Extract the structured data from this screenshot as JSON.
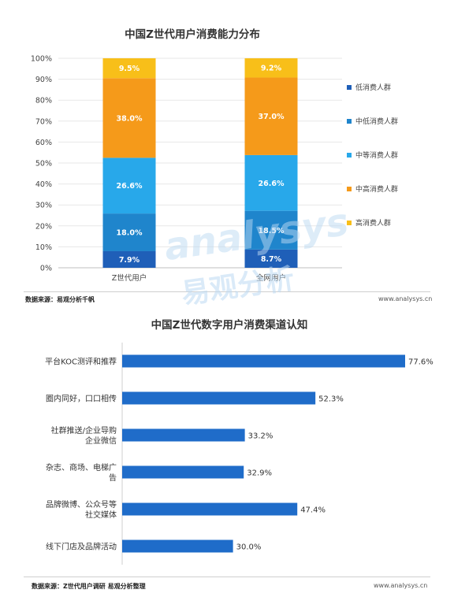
{
  "chart_data": [
    {
      "type": "bar",
      "stacked": true,
      "title": "中国Z世代用户消费能力分布",
      "categories": [
        "Z世代用户",
        "全网用户"
      ],
      "series": [
        {
          "name": "低消费人群",
          "color": "#1f5fb8",
          "values": [
            7.9,
            8.7
          ]
        },
        {
          "name": "中低消费人群",
          "color": "#1f85cc",
          "values": [
            18.0,
            18.5
          ]
        },
        {
          "name": "中等消费人群",
          "color": "#28a8ea",
          "values": [
            26.6,
            26.6
          ]
        },
        {
          "name": "中高消费人群",
          "color": "#f59a1a",
          "values": [
            38.0,
            37.0
          ]
        },
        {
          "name": "高消费人群",
          "color": "#f8bf19",
          "values": [
            9.5,
            9.2
          ]
        }
      ],
      "value_labels": [
        [
          "7.9%",
          "18.0%",
          "26.6%",
          "38.0%",
          "9.5%"
        ],
        [
          "8.7%",
          "18.5%",
          "26.6%",
          "37.0%",
          "9.2%"
        ]
      ],
      "yticks": [
        "0%",
        "10%",
        "20%",
        "30%",
        "40%",
        "50%",
        "60%",
        "70%",
        "80%",
        "90%",
        "100%"
      ],
      "ylim": [
        0,
        100
      ],
      "legend_position": "right"
    },
    {
      "type": "bar",
      "orientation": "horizontal",
      "title": "中国Z世代数字用户消费渠道认知",
      "categories": [
        [
          "平台KOC测评和推荐"
        ],
        [
          "圈内同好，口口相传"
        ],
        [
          "社群推送/企业导购",
          "企业微信"
        ],
        [
          "杂志、商场、电梯广",
          "告"
        ],
        [
          "品牌微博、公众号等",
          "社交媒体"
        ],
        [
          "线下门店及品牌活动"
        ]
      ],
      "values": [
        77.6,
        52.3,
        33.2,
        32.9,
        47.4,
        30.0
      ],
      "value_labels": [
        "77.6%",
        "52.3%",
        "33.2%",
        "32.9%",
        "47.4%",
        "30.0%"
      ],
      "color": "#1f6cc9",
      "xlim": [
        0,
        80
      ]
    }
  ],
  "footer1": {
    "source": "数据来源：易观分析千帆",
    "site": "www.analysys.cn"
  },
  "footer2": {
    "source": "数据来源：Z世代用户调研 易观分析整理",
    "site": "www.analysys.cn"
  },
  "watermark": {
    "latin": "analysys",
    "chinese": "易观分析"
  }
}
